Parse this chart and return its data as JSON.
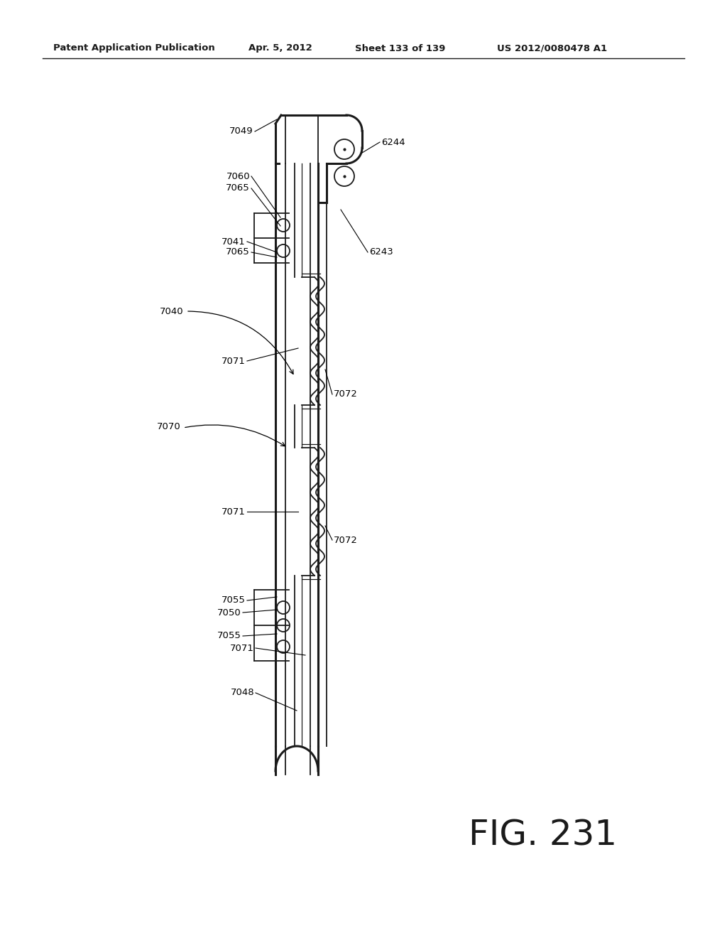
{
  "bg_color": "#ffffff",
  "header_text": "Patent Application Publication",
  "header_date": "Apr. 5, 2012",
  "header_sheet": "Sheet 133 of 139",
  "header_patent": "US 2012/0080478 A1",
  "fig_label": "FIG. 231",
  "color": "#1a1a1a"
}
